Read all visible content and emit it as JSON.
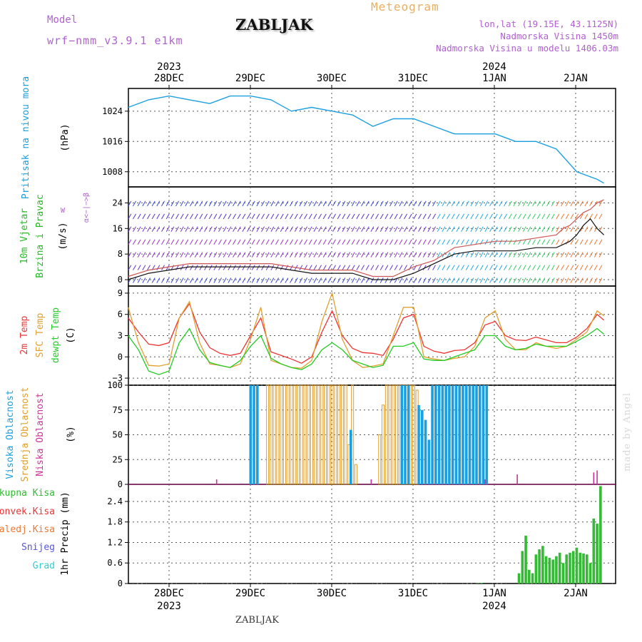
{
  "header": {
    "model_label": "Model",
    "model_name": "wrf−nmm_v3.9.1  e1km",
    "title": "ZABLJAK",
    "meteogram": "Meteogram",
    "lonlat": "lon,lat (19.15E, 43.1125N)",
    "altitude": "Nadmorska Visina 1450m",
    "altitude_model": "Nadmorska Visina u modelu 1406.03m"
  },
  "footer": {
    "station": "ZABLJAK",
    "credit": "made by Angel"
  },
  "colors": {
    "pressure": "#1a9fe0",
    "temp2m": "#ee3333",
    "sfc": "#e0a030",
    "dewpt": "#22cc22",
    "high_cloud": "#1a9fe0",
    "mid_cloud": "#e0a030",
    "low_cloud": "#cc3399",
    "precip": "#33bb33",
    "grid": "#555555"
  },
  "chart_data": [
    {
      "type": "line",
      "name": "pressure",
      "ylabel_left": "Pritisak na nivou mora",
      "ylabel_unit": "(hPa)",
      "yticks": [
        1008,
        1016,
        1024
      ],
      "ylim": [
        1004,
        1030
      ],
      "x_hours": [
        0,
        6,
        12,
        18,
        24,
        30,
        36,
        42,
        48,
        54,
        60,
        66,
        72,
        78,
        84,
        90,
        96,
        102,
        108,
        114,
        120,
        126,
        132,
        138,
        140
      ],
      "values": [
        1025,
        1027,
        1028,
        1027,
        1026,
        1028,
        1028,
        1027,
        1024,
        1025,
        1024,
        1023,
        1020,
        1022,
        1022,
        1020,
        1018,
        1018,
        1018,
        1016,
        1016,
        1014,
        1008,
        1006,
        1005
      ]
    },
    {
      "type": "line",
      "name": "wind",
      "ylabel_left": [
        "10m Vjetar",
        "Brzina i Pravac"
      ],
      "ylabel_unit": "(m/s)",
      "compass": [
        "N",
        "α<−|−>β",
        "W"
      ],
      "yticks": [
        0,
        8,
        16,
        24
      ],
      "ylim": [
        -2,
        29
      ],
      "x_hours": [
        0,
        6,
        12,
        18,
        24,
        30,
        36,
        42,
        48,
        54,
        60,
        66,
        72,
        78,
        84,
        90,
        96,
        102,
        108,
        114,
        120,
        126,
        128,
        130,
        132,
        134,
        136,
        138,
        140
      ],
      "series": [
        {
          "key": "gust",
          "values": [
            1,
            3,
            4,
            5,
            5,
            5,
            5,
            5,
            4,
            3,
            3,
            3,
            1,
            1,
            4,
            6,
            10,
            11,
            12,
            12,
            13,
            14,
            16,
            17,
            19,
            21,
            22,
            24,
            25
          ]
        },
        {
          "key": "speed",
          "values": [
            0,
            2,
            3,
            4,
            4,
            4,
            4,
            4,
            3,
            2,
            2,
            2,
            0,
            0,
            2,
            5,
            8,
            9,
            9,
            9,
            10,
            10,
            11,
            12,
            14,
            17,
            19,
            16,
            14
          ]
        }
      ]
    },
    {
      "type": "line",
      "name": "temperature",
      "ylabel_left": [
        "2m Temp",
        "SFC Temp",
        "dewpt Temp"
      ],
      "ylabel_unit": "(C)",
      "yticks": [
        -3,
        0,
        3,
        6,
        9
      ],
      "ylim": [
        -4,
        10
      ],
      "x_hours": [
        0,
        3,
        6,
        9,
        12,
        15,
        18,
        21,
        24,
        27,
        30,
        33,
        36,
        39,
        42,
        45,
        48,
        51,
        54,
        57,
        60,
        63,
        66,
        69,
        72,
        75,
        78,
        81,
        84,
        87,
        90,
        93,
        96,
        99,
        102,
        105,
        108,
        111,
        114,
        117,
        120,
        123,
        126,
        129,
        132,
        135,
        138,
        140
      ],
      "series": [
        {
          "key": "t2m",
          "name": "2m Temp",
          "values": [
            5.5,
            3.5,
            1.8,
            1.6,
            2.0,
            5.5,
            7.5,
            3.5,
            1.3,
            0.5,
            0.2,
            0.5,
            3.0,
            5.5,
            0.7,
            0.2,
            -0.3,
            -0.9,
            0.0,
            3.5,
            6.5,
            3.0,
            1.2,
            0.6,
            0.5,
            0.2,
            2.5,
            5.5,
            6.0,
            1.5,
            0.8,
            0.5,
            0.9,
            1.0,
            2.0,
            4.5,
            5.0,
            3.0,
            2.4,
            2.3,
            2.8,
            2.4,
            2.0,
            2.0,
            2.8,
            4.0,
            6.0,
            5.2
          ]
        },
        {
          "key": "sfc",
          "name": "SFC Temp",
          "values": [
            7.0,
            2.0,
            -1.2,
            -1.3,
            -1.0,
            5.5,
            7.8,
            2.0,
            -1.0,
            -1.2,
            -1.5,
            -1.0,
            2.5,
            7.0,
            -0.5,
            -1.0,
            -1.5,
            -1.6,
            -0.5,
            5.0,
            9.0,
            2.5,
            -0.5,
            -1.5,
            -1.3,
            -1.0,
            3.0,
            7.0,
            7.0,
            0.0,
            -0.3,
            -0.5,
            -0.2,
            0.0,
            1.5,
            5.5,
            6.5,
            2.5,
            1.0,
            1.0,
            2.0,
            1.5,
            1.2,
            1.5,
            2.5,
            3.5,
            6.5,
            5.8
          ]
        },
        {
          "key": "dewpt",
          "name": "dewpt Temp",
          "values": [
            3.0,
            1.0,
            -2.0,
            -2.5,
            -2.0,
            2.0,
            4.0,
            1.0,
            -0.8,
            -1.2,
            -1.5,
            -0.5,
            1.5,
            3.0,
            -0.2,
            -1.0,
            -1.5,
            -1.8,
            -1.0,
            1.0,
            2.0,
            1.0,
            -0.5,
            -1.0,
            -1.5,
            -1.2,
            1.5,
            1.5,
            2.0,
            -0.3,
            -0.5,
            -0.5,
            0.0,
            0.5,
            1.0,
            3.0,
            3.0,
            1.5,
            1.0,
            1.2,
            1.8,
            1.5,
            1.5,
            1.5,
            2.2,
            3.0,
            4.0,
            3.2
          ]
        }
      ]
    },
    {
      "type": "bar",
      "name": "cloud",
      "ylabel_left": [
        "Visoka Oblacnost",
        "Srednja Oblacnost",
        "Niska Oblacnost"
      ],
      "ylabel_unit": "(%)",
      "yticks": [
        0,
        25,
        50,
        75,
        100
      ],
      "ylim": [
        0,
        100
      ],
      "high_hours": [
        36,
        37,
        38,
        65.5,
        80.5,
        81.5,
        82.5,
        85.5,
        86.5,
        87.5,
        88.5,
        89.5,
        90.5,
        91.5,
        92.5,
        93.5,
        94.5,
        95.5,
        96.5,
        97.5,
        98.5,
        99.5,
        100.5,
        101.5,
        102.5,
        103.5,
        104.5,
        105.5
      ],
      "high_values": [
        100,
        100,
        100,
        55,
        100,
        100,
        100,
        80,
        75,
        65,
        45,
        100,
        100,
        100,
        100,
        100,
        100,
        100,
        100,
        100,
        100,
        100,
        100,
        100,
        100,
        100,
        100,
        100
      ],
      "mid_hours": [
        41,
        42,
        43,
        44,
        45,
        46,
        47,
        48,
        49,
        50,
        51,
        52,
        53,
        54,
        55,
        56,
        57,
        58,
        59,
        60,
        61,
        62,
        63,
        64,
        65,
        66,
        67,
        68,
        69,
        70,
        71,
        72,
        73,
        74,
        75,
        76,
        77,
        78,
        79,
        80,
        81,
        82,
        83,
        84,
        85
      ],
      "mid_values": [
        100,
        100,
        100,
        100,
        100,
        100,
        100,
        100,
        100,
        100,
        100,
        100,
        100,
        100,
        100,
        100,
        100,
        100,
        100,
        100,
        100,
        100,
        100,
        100,
        40,
        100,
        20,
        0,
        0,
        0,
        0,
        0,
        0,
        50,
        80,
        100,
        100,
        100,
        100,
        100,
        100,
        100,
        100,
        100,
        95
      ],
      "low_hours": [
        26,
        71.5,
        105,
        114.5,
        137,
        138
      ],
      "low_values": [
        5,
        5,
        5,
        10,
        12,
        14
      ]
    },
    {
      "type": "bar",
      "name": "precip",
      "ylabel_left": [
        "Ukupna  Kisa",
        "Konvek.Kisa",
        "Zaledj.Kisa",
        "Snijeg",
        "Grad"
      ],
      "legend_colors": [
        "#33bb33",
        "#ee3333",
        "#ee7733",
        "#5555dd",
        "#33cccc"
      ],
      "ylabel_unit": "1hr Precip (mm)",
      "yticks": [
        0,
        0.6,
        1.2,
        1.8,
        2.4
      ],
      "ylim": [
        0,
        2.9
      ],
      "x_hours": [
        103,
        104,
        115,
        116,
        117,
        118,
        119,
        120,
        121,
        122,
        123,
        124,
        125,
        126,
        127,
        128,
        129,
        130,
        131,
        132,
        133,
        134,
        135,
        136,
        137,
        138,
        139
      ],
      "values": [
        0.01,
        0.02,
        0.3,
        0.95,
        1.4,
        0.4,
        0.3,
        0.85,
        1.0,
        1.1,
        0.8,
        0.75,
        0.7,
        0.8,
        0.9,
        0.6,
        0.85,
        0.9,
        0.95,
        1.05,
        0.9,
        0.88,
        0.85,
        0.6,
        1.9,
        1.75,
        2.85
      ]
    }
  ],
  "time_axis": {
    "start_label_hour": 12,
    "days": [
      "28DEC",
      "29DEC",
      "30DEC",
      "31DEC",
      "1JAN",
      "2JAN"
    ],
    "years_top": [
      [
        "2023",
        0
      ],
      [
        "2024",
        4
      ]
    ],
    "years_bottom": [
      [
        "2023",
        0
      ],
      [
        "2024",
        4
      ]
    ]
  }
}
